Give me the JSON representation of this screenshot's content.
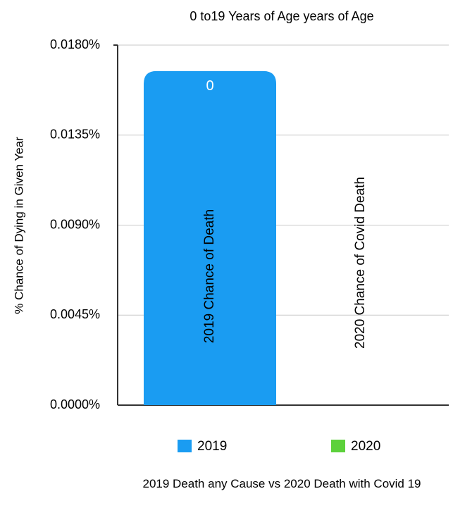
{
  "chart_data": {
    "type": "bar",
    "title": "0 to19 Years of Age years of Age",
    "y_label": "% Chance of Dying in Given Year",
    "x_label": "2019 Death any Cause vs 2020 Death with Covid 19",
    "categories": [
      null
    ],
    "series": [
      {
        "name": "2019",
        "color": "#1a9cf2",
        "values": [
          0.0167
        ],
        "value_labels": [
          "0"
        ],
        "bar_label": "2019 Chance of Death"
      },
      {
        "name": "2020",
        "color": "#5cd13b",
        "values": [
          0
        ],
        "bar_label": "2020 Chance of Covid Death"
      }
    ],
    "ylim": [
      0,
      0.018
    ],
    "yticks": [
      {
        "value": 0,
        "label": "0.0000%"
      },
      {
        "value": 0.0045,
        "label": "0.0045%"
      },
      {
        "value": 0.009,
        "label": "0.0090%"
      },
      {
        "value": 0.0135,
        "label": "0.0135%"
      },
      {
        "value": 0.018,
        "label": "0.0180%"
      }
    ],
    "grid": true,
    "legend": "bottom"
  }
}
